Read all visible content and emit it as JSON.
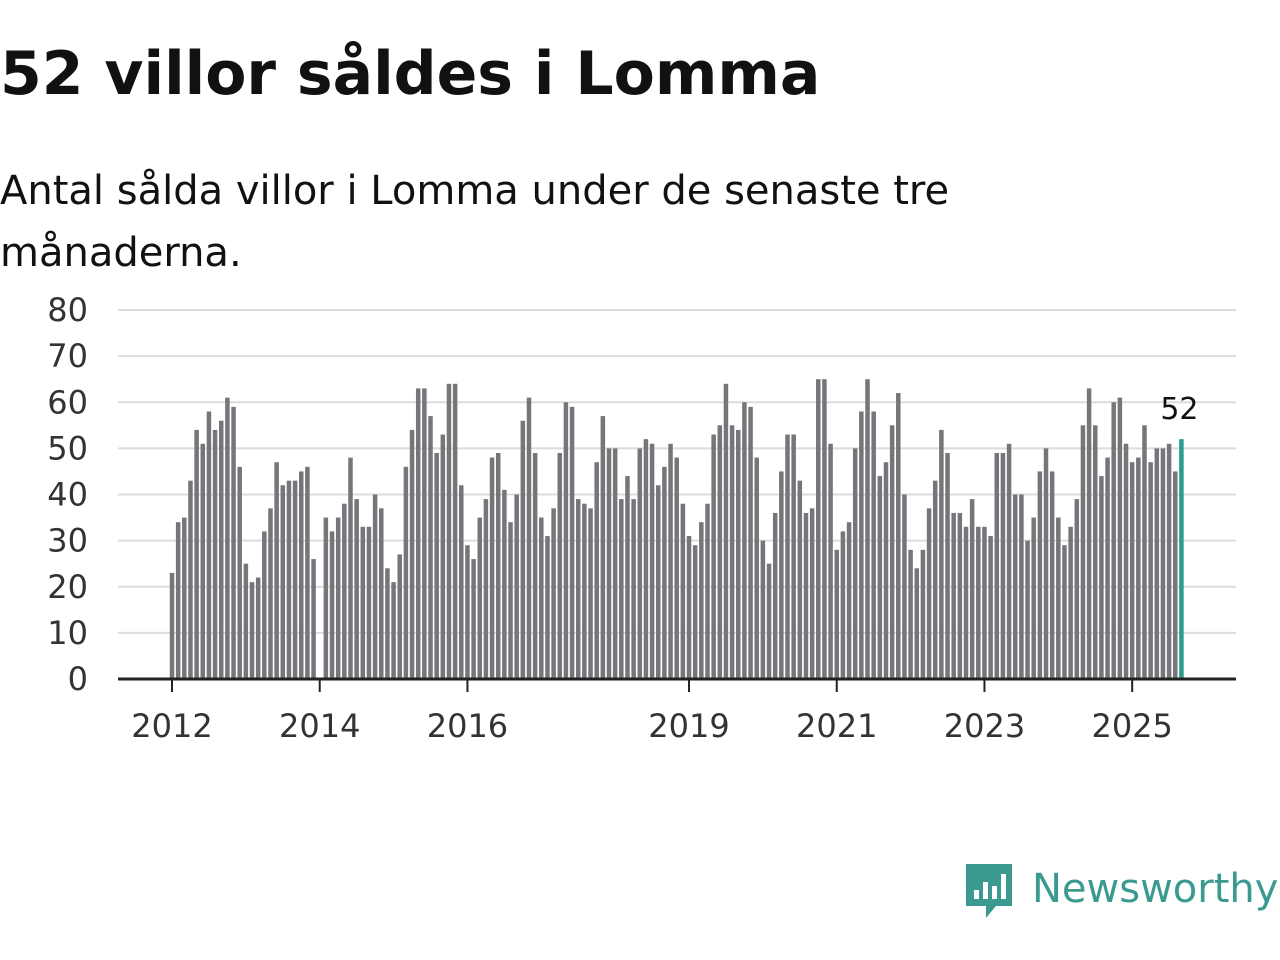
{
  "header": {
    "title": "52 villor såldes i Lomma",
    "subtitle": "Antal sålda villor i Lomma under de senaste tre månaderna."
  },
  "brand": {
    "name": "Newsworthy",
    "icon": "newsworthy-logo-icon",
    "color": "#3b9a8f"
  },
  "chart_data": {
    "type": "bar",
    "title": "52 villor såldes i Lomma",
    "subtitle": "Antal sålda villor i Lomma under de senaste tre månaderna.",
    "xlabel": "",
    "ylabel": "",
    "ylim": [
      0,
      80
    ],
    "yticks": [
      0,
      10,
      20,
      30,
      40,
      50,
      60,
      70,
      80
    ],
    "grid": true,
    "x_start": "2012-01",
    "x_end": "2025-09",
    "xticks": [
      {
        "label": "2012",
        "month": "2012-01"
      },
      {
        "label": "2014",
        "month": "2014-01"
      },
      {
        "label": "2016",
        "month": "2016-01"
      },
      {
        "label": "2019",
        "month": "2019-01"
      },
      {
        "label": "2021",
        "month": "2021-01"
      },
      {
        "label": "2023",
        "month": "2023-01"
      },
      {
        "label": "2025",
        "month": "2025-01"
      }
    ],
    "values": [
      23,
      34,
      35,
      43,
      54,
      51,
      58,
      54,
      56,
      61,
      59,
      46,
      25,
      21,
      22,
      32,
      37,
      47,
      42,
      43,
      43,
      45,
      46,
      26,
      null,
      35,
      32,
      35,
      38,
      48,
      39,
      33,
      33,
      40,
      37,
      24,
      21,
      27,
      46,
      54,
      63,
      63,
      57,
      49,
      53,
      64,
      64,
      42,
      29,
      26,
      35,
      39,
      48,
      49,
      41,
      34,
      40,
      56,
      61,
      49,
      35,
      31,
      37,
      49,
      60,
      59,
      39,
      38,
      37,
      47,
      57,
      50,
      50,
      39,
      44,
      39,
      50,
      52,
      51,
      42,
      46,
      51,
      48,
      38,
      31,
      29,
      34,
      38,
      53,
      55,
      64,
      55,
      54,
      60,
      59,
      48,
      30,
      25,
      36,
      45,
      53,
      53,
      43,
      36,
      37,
      65,
      65,
      51,
      28,
      32,
      34,
      50,
      58,
      65,
      58,
      44,
      47,
      55,
      62,
      40,
      28,
      24,
      28,
      37,
      43,
      54,
      49,
      36,
      36,
      33,
      39,
      33,
      33,
      31,
      49,
      49,
      51,
      40,
      40,
      30,
      35,
      45,
      50,
      45,
      35,
      29,
      33,
      39,
      55,
      63,
      55,
      44,
      48,
      60,
      61,
      51,
      47,
      48,
      55,
      47,
      50,
      50,
      51,
      45,
      52
    ],
    "highlight_index": 164,
    "highlight_label": "52",
    "bar_color": "#76757a",
    "highlight_color": "#2a9d8f"
  }
}
